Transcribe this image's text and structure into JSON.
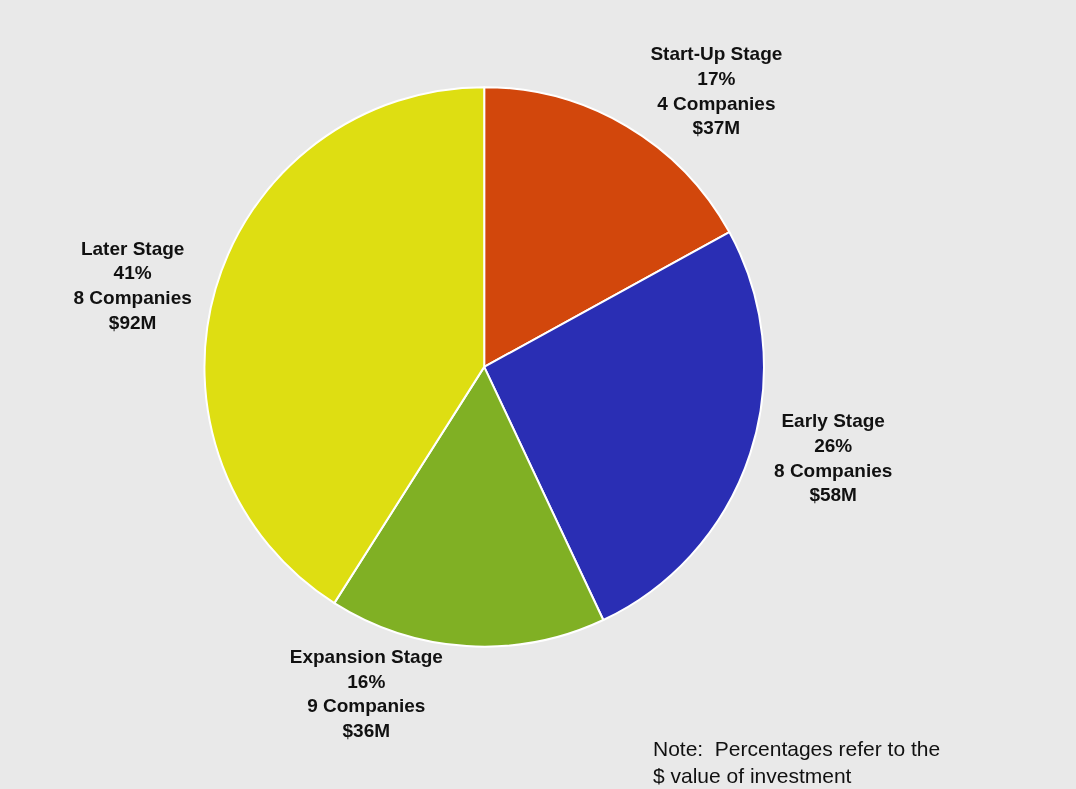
{
  "chart_data": {
    "type": "pie",
    "categories": [
      "Start-Up Stage",
      "Early Stage",
      "Expansion Stage",
      "Later Stage"
    ],
    "values": [
      17,
      26,
      16,
      41
    ],
    "value_labels": [
      "17%\n4 Companies\n$37M",
      "26%\n8 Companies\n$58M",
      "16%\n9 Companies\n$36M",
      "41%\n8 Companies\n$92M"
    ],
    "colors": [
      "#d2470c",
      "#2a2eb4",
      "#80b024",
      "#dede12"
    ],
    "legend": false,
    "annotations": [
      "Note:  Percentages refer to the\n$ value of investment"
    ]
  }
}
